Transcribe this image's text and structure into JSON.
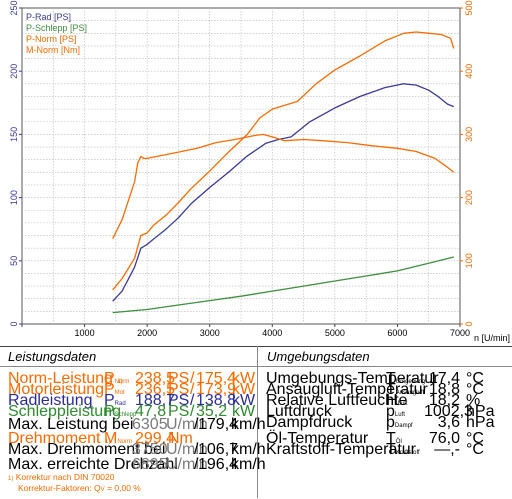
{
  "chart_data": {
    "type": "line",
    "xlabel": "n [U/min]",
    "xlim": [
      0,
      7000
    ],
    "x_ticks": [
      "0",
      "1000",
      "2000",
      "3000",
      "4000",
      "5000",
      "6000",
      "7000"
    ],
    "ylim_left": [
      0,
      250
    ],
    "y_left_ticks": [
      "0",
      "50",
      "100",
      "150",
      "200",
      "250"
    ],
    "ylim_right": [
      0,
      500
    ],
    "y_right_ticks": [
      "0",
      "100",
      "200",
      "300",
      "400",
      "500"
    ],
    "grid": true,
    "legend_position": "top-left",
    "series": [
      {
        "name": "P-Rad [PS]",
        "axis": "left",
        "color": "#3a3a9a",
        "x": [
          1450,
          1600,
          1800,
          1900,
          2000,
          2100,
          2300,
          2500,
          2700,
          3000,
          3300,
          3600,
          3900,
          4100,
          4300,
          4600,
          5000,
          5400,
          5800,
          6100,
          6300,
          6500,
          6650,
          6800,
          6900
        ],
        "y": [
          18,
          26,
          45,
          60,
          63,
          67,
          75,
          84,
          95,
          108,
          120,
          133,
          143,
          146,
          148,
          160,
          171,
          180,
          187,
          190,
          189,
          185,
          180,
          174,
          172
        ]
      },
      {
        "name": "P-Schlepp [PS]",
        "axis": "left",
        "color": "#3e8f3e",
        "x": [
          1450,
          2000,
          2500,
          3000,
          3500,
          4000,
          4500,
          5000,
          5500,
          6000,
          6500,
          6900
        ],
        "y": [
          9,
          11.5,
          15,
          18.5,
          22,
          26,
          30,
          34,
          38,
          42,
          48,
          53
        ]
      },
      {
        "name": "P-Norm [PS]",
        "axis": "left",
        "color": "#ff6a00",
        "x": [
          1450,
          1600,
          1800,
          1900,
          2000,
          2100,
          2300,
          2500,
          2700,
          3000,
          3300,
          3600,
          3800,
          4000,
          4200,
          4400,
          4700,
          5000,
          5400,
          5800,
          6100,
          6300,
          6500,
          6700,
          6850,
          6900
        ],
        "y": [
          27,
          36,
          52,
          70,
          72,
          78,
          86,
          96,
          107,
          121,
          136,
          150,
          163,
          170,
          173,
          176,
          190,
          201,
          212,
          224,
          230,
          231,
          230,
          229,
          226,
          218
        ]
      },
      {
        "name": "M-Norm [Nm]",
        "axis": "right",
        "color": "#ff6a00",
        "x": [
          1450,
          1600,
          1800,
          1850,
          1900,
          1950,
          2000,
          2200,
          2500,
          2800,
          3100,
          3400,
          3700,
          3850,
          4000,
          4200,
          4500,
          4800,
          5200,
          5600,
          6000,
          6300,
          6600,
          6800,
          6900
        ],
        "y": [
          135,
          165,
          225,
          255,
          265,
          262,
          262,
          266,
          272,
          278,
          287,
          292,
          298,
          300,
          296,
          290,
          292,
          290,
          287,
          282,
          278,
          273,
          262,
          248,
          240
        ]
      }
    ]
  },
  "leistung": {
    "title": "Leistungsdaten",
    "norm_label": "Norm-Leistung",
    "footnote_mark": "1)",
    "norm_sym": "P",
    "norm_sub": "Norm",
    "norm_ps": "238,5",
    "norm_kw": "175,4",
    "motor_label": "Motorleistung",
    "motor_sym": "P",
    "motor_sub": "Mot",
    "motor_ps": "236,5",
    "motor_kw": "173,9",
    "rad_label": "Radleistung",
    "rad_sym": "P",
    "rad_sub": "Rad",
    "rad_ps": "188,7",
    "rad_kw": "138,8",
    "schlepp_label": "Schleppleistung",
    "schlepp_sym": "P",
    "schlepp_sub": "Schlepp",
    "schlepp_ps": "47,8",
    "schlepp_kw": "35,2",
    "max_leistung_label": "Max. Leistung bei",
    "max_leistung_rpm": "6305",
    "max_leistung_kmh": "179,4",
    "dreh_label": "Drehmoment",
    "dreh_sym": "M",
    "dreh_sub": "Norm",
    "dreh_val": "299,4",
    "dreh_unit": "Nm",
    "max_dreh_label": "Max. Drehmoment bei",
    "max_dreh_rpm": "3750",
    "max_dreh_kmh": "106,7",
    "max_drehzahl_label": "Max. erreichte Drehzahl",
    "max_drehzahl_rpm": "6895",
    "max_drehzahl_kmh": "196,4",
    "unit_ps": "PS",
    "unit_kw": "kW",
    "unit_rpm": "U/min",
    "unit_kmh": "km/h",
    "slash": "/",
    "korrektur_line1": "Korrektur nach DIN 70020",
    "korrektur_line2_prefix": "Korrektur-Faktoren: Q",
    "korrektur_sub": "V",
    "korrektur_value": "= 0,00 %"
  },
  "umgebung": {
    "title": "Umgebungsdaten",
    "rows": [
      {
        "label": "Umgebungs-Temperatur",
        "sym": "T",
        "sub": "Umgebung",
        "value": "17,4",
        "unit": "°C"
      },
      {
        "label": "Ansaugluft-Temperatur",
        "sym": "T",
        "sub": "Ansaugluft",
        "value": "18,8",
        "unit": "°C"
      },
      {
        "label": "Relative Luftfeuchte",
        "sym": "H",
        "sub": "Luft",
        "value": "18,2",
        "unit": "%"
      },
      {
        "label": "Luftdruck",
        "sym": "p",
        "sub": "Luft",
        "value": "1002,3",
        "unit": "hPa"
      },
      {
        "label": "Dampfdruck",
        "sym": "p",
        "sub": "Dampf",
        "value": "3,6",
        "unit": "hPa"
      },
      {
        "label": "Öl-Temperatur",
        "sym": "T",
        "sub": "Öl",
        "value": "76,0",
        "unit": "°C"
      },
      {
        "label": "Kraftstoff-Temperatur",
        "sym": "T",
        "sub": "Kraftstoff",
        "value": "—,-",
        "unit": "°C"
      }
    ]
  }
}
